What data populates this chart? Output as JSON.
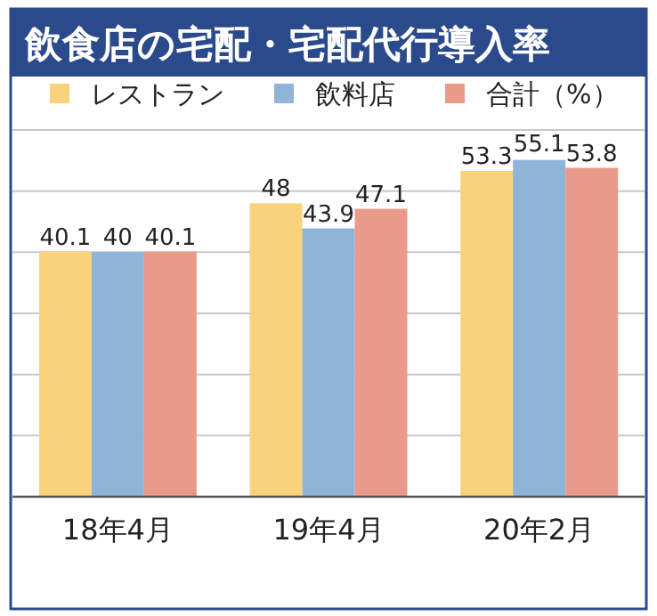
{
  "chart_data": {
    "type": "bar",
    "title": "飲食店の宅配・宅配代行導入率",
    "categories": [
      "18年4月",
      "19年4月",
      "20年2月"
    ],
    "series": [
      {
        "name": "レストラン",
        "color": "#f9d27b",
        "values": [
          40.1,
          48,
          53.3
        ]
      },
      {
        "name": "飲料店",
        "color": "#8fb4d7",
        "values": [
          40,
          43.9,
          55.1
        ]
      },
      {
        "name": "合計（%）",
        "color": "#e99a8a",
        "values": [
          40.1,
          47.1,
          53.8
        ]
      }
    ],
    "ylim": [
      0,
      60
    ],
    "yticks": [
      {
        "value": 10,
        "label": null
      },
      {
        "value": 20,
        "label": null
      },
      {
        "value": 30,
        "label": null
      },
      {
        "value": 40,
        "label": null
      },
      {
        "value": 50,
        "label": null
      },
      {
        "value": 60,
        "label": null
      }
    ],
    "grid": "y",
    "legend": "top",
    "data_labels": true
  }
}
